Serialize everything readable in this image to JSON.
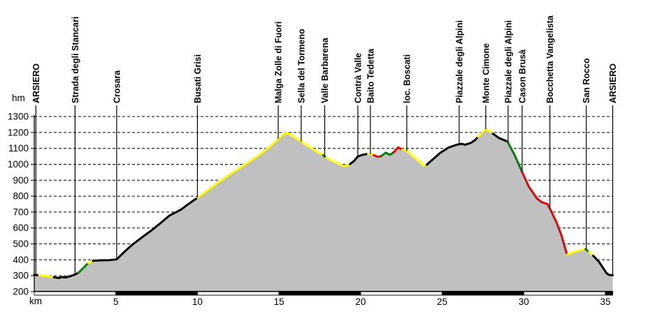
{
  "chart_data": {
    "type": "area",
    "xlabel": "km",
    "ylabel": "hm",
    "x_unit": "km",
    "y_unit": "hm",
    "xlim": [
      0,
      35.45
    ],
    "ylim": [
      200,
      1300
    ],
    "x_ticks": [
      5,
      10,
      15,
      20,
      25,
      30,
      35
    ],
    "y_ticks": [
      200,
      300,
      400,
      500,
      600,
      700,
      800,
      900,
      1000,
      1100,
      1200,
      1300
    ],
    "grid": "dashed-horizontal",
    "legend": "none",
    "background_color": "#ffffff",
    "area_fill_color": "#c0c0c0",
    "line_colors": {
      "black": "#000000",
      "yellow": "#ffff00",
      "green": "#008000",
      "red": "#ee0000"
    },
    "profile_segments": [
      {
        "color": "black",
        "points": [
          [
            0,
            305
          ],
          [
            0.3,
            303
          ]
        ]
      },
      {
        "color": "yellow",
        "points": [
          [
            0.3,
            303
          ],
          [
            0.8,
            297
          ],
          [
            1.2,
            291
          ]
        ]
      },
      {
        "color": "black",
        "points": [
          [
            1.2,
            291
          ],
          [
            1.5,
            286
          ],
          [
            1.7,
            292
          ],
          [
            1.9,
            289
          ],
          [
            2.2,
            297
          ],
          [
            2.45,
            306
          ],
          [
            2.7,
            318
          ]
        ]
      },
      {
        "color": "green",
        "points": [
          [
            2.7,
            318
          ],
          [
            3.0,
            348
          ],
          [
            3.3,
            380
          ]
        ]
      },
      {
        "color": "yellow",
        "points": [
          [
            3.3,
            380
          ],
          [
            3.6,
            394
          ]
        ]
      },
      {
        "color": "black",
        "points": [
          [
            3.6,
            394
          ],
          [
            4.1,
            397
          ],
          [
            4.6,
            398
          ],
          [
            5.05,
            403
          ],
          [
            5.5,
            448
          ],
          [
            6.0,
            494
          ],
          [
            6.6,
            541
          ],
          [
            7.2,
            586
          ],
          [
            7.8,
            636
          ],
          [
            8.3,
            679
          ],
          [
            8.65,
            697
          ],
          [
            9.0,
            716
          ],
          [
            9.4,
            747
          ],
          [
            10.0,
            790
          ]
        ]
      },
      {
        "color": "yellow",
        "points": [
          [
            10.0,
            790
          ],
          [
            10.6,
            836
          ],
          [
            11.2,
            881
          ],
          [
            12.0,
            939
          ],
          [
            12.8,
            991
          ],
          [
            13.4,
            1033
          ],
          [
            14.0,
            1076
          ],
          [
            14.5,
            1119
          ],
          [
            14.95,
            1159
          ],
          [
            15.3,
            1193
          ],
          [
            15.5,
            1196
          ],
          [
            15.8,
            1179
          ],
          [
            16.36,
            1141
          ],
          [
            16.9,
            1106
          ],
          [
            17.3,
            1079
          ],
          [
            17.7,
            1057
          ]
        ]
      },
      {
        "color": "green",
        "points": [
          [
            17.7,
            1057
          ],
          [
            17.9,
            1041
          ]
        ]
      },
      {
        "color": "yellow",
        "points": [
          [
            17.9,
            1041
          ],
          [
            18.3,
            1019
          ],
          [
            18.7,
            1000
          ],
          [
            19.0,
            988
          ],
          [
            19.2,
            994
          ],
          [
            19.35,
            1001
          ]
        ]
      },
      {
        "color": "black",
        "points": [
          [
            19.35,
            1001
          ],
          [
            19.6,
            1021
          ],
          [
            19.83,
            1049
          ],
          [
            20.1,
            1059
          ],
          [
            20.45,
            1066
          ]
        ]
      },
      {
        "color": "yellow",
        "points": [
          [
            20.45,
            1066
          ],
          [
            20.62,
            1063
          ],
          [
            20.8,
            1058
          ]
        ]
      },
      {
        "color": "red",
        "points": [
          [
            20.8,
            1058
          ],
          [
            21.05,
            1047
          ],
          [
            21.25,
            1051
          ]
        ]
      },
      {
        "color": "green",
        "points": [
          [
            21.25,
            1051
          ],
          [
            21.55,
            1073
          ],
          [
            21.8,
            1059
          ],
          [
            22.0,
            1073
          ]
        ]
      },
      {
        "color": "red",
        "points": [
          [
            22.0,
            1073
          ],
          [
            22.3,
            1106
          ],
          [
            22.55,
            1093
          ]
        ]
      },
      {
        "color": "yellow",
        "points": [
          [
            22.55,
            1093
          ],
          [
            22.83,
            1083
          ],
          [
            23.2,
            1051
          ],
          [
            23.6,
            1016
          ],
          [
            23.85,
            991
          ],
          [
            24.05,
            997
          ]
        ]
      },
      {
        "color": "black",
        "points": [
          [
            24.05,
            997
          ],
          [
            24.4,
            1029
          ],
          [
            24.9,
            1073
          ],
          [
            25.4,
            1106
          ],
          [
            25.9,
            1123
          ],
          [
            26.2,
            1129
          ],
          [
            26.4,
            1123
          ],
          [
            26.75,
            1134
          ],
          [
            27.0,
            1151
          ],
          [
            27.2,
            1173
          ]
        ]
      },
      {
        "color": "yellow",
        "points": [
          [
            27.2,
            1173
          ],
          [
            27.45,
            1201
          ],
          [
            27.67,
            1219
          ],
          [
            27.9,
            1208
          ],
          [
            28.1,
            1193
          ]
        ]
      },
      {
        "color": "black",
        "points": [
          [
            28.1,
            1193
          ],
          [
            28.5,
            1164
          ],
          [
            29.0,
            1143
          ]
        ]
      },
      {
        "color": "green",
        "points": [
          [
            29.0,
            1143
          ],
          [
            29.45,
            1056
          ],
          [
            29.9,
            951
          ]
        ]
      },
      {
        "color": "red",
        "points": [
          [
            29.9,
            951
          ],
          [
            30.3,
            861
          ],
          [
            30.8,
            786
          ],
          [
            31.1,
            762
          ],
          [
            31.45,
            751
          ],
          [
            31.6,
            722
          ],
          [
            32.0,
            636
          ],
          [
            32.3,
            556
          ],
          [
            32.65,
            431
          ]
        ]
      },
      {
        "color": "yellow",
        "points": [
          [
            32.65,
            431
          ],
          [
            33.0,
            448
          ],
          [
            33.5,
            461
          ],
          [
            33.78,
            467
          ]
        ]
      },
      {
        "color": "green",
        "points": [
          [
            33.78,
            467
          ],
          [
            34.0,
            449
          ]
        ]
      },
      {
        "color": "yellow",
        "points": [
          [
            34.0,
            449
          ],
          [
            34.25,
            426
          ]
        ]
      },
      {
        "color": "black",
        "points": [
          [
            34.25,
            426
          ],
          [
            34.6,
            389
          ],
          [
            34.85,
            351
          ],
          [
            35.05,
            319
          ],
          [
            35.2,
            306
          ],
          [
            35.45,
            303
          ]
        ]
      }
    ],
    "waypoints": [
      {
        "name": "ARSIERO",
        "km": 0.1,
        "hm": 305
      },
      {
        "name": "Strada degli Stancari",
        "km": 2.5,
        "hm": 308
      },
      {
        "name": "Crosara",
        "km": 5.05,
        "hm": 403
      },
      {
        "name": "Busati Grisi",
        "km": 10.0,
        "hm": 790
      },
      {
        "name": "Malga Zolle di Fuori",
        "km": 14.95,
        "hm": 1159
      },
      {
        "name": "Sella del Tormeno",
        "km": 16.36,
        "hm": 1141
      },
      {
        "name": "Valle Barbarena",
        "km": 17.8,
        "hm": 1049
      },
      {
        "name": "Contrà Valle",
        "km": 19.83,
        "hm": 1049
      },
      {
        "name": "Baito Tedetta",
        "km": 20.6,
        "hm": 1063
      },
      {
        "name": "loc. Boscati",
        "km": 22.83,
        "hm": 1083
      },
      {
        "name": "Piazzale degli Alpini",
        "km": 26.04,
        "hm": 1127
      },
      {
        "name": "Monte Cimone",
        "km": 27.67,
        "hm": 1219
      },
      {
        "name": "Piazzale degli Alpini",
        "km": 29.04,
        "hm": 1136
      },
      {
        "name": "Cason Brusà",
        "km": 29.9,
        "hm": 951
      },
      {
        "name": "Bocchetta Vangelista",
        "km": 31.6,
        "hm": 722
      },
      {
        "name": "San Rocco",
        "km": 33.83,
        "hm": 465
      },
      {
        "name": "ARSIERO",
        "km": 35.45,
        "hm": 303
      }
    ],
    "distance_scale_bar": [
      {
        "from_km": 0,
        "to_km": 5,
        "color": "white"
      },
      {
        "from_km": 5,
        "to_km": 10,
        "color": "black"
      },
      {
        "from_km": 10,
        "to_km": 15,
        "color": "white"
      },
      {
        "from_km": 15,
        "to_km": 20,
        "color": "black"
      },
      {
        "from_km": 20,
        "to_km": 25,
        "color": "white"
      },
      {
        "from_km": 25,
        "to_km": 30,
        "color": "black"
      },
      {
        "from_km": 30,
        "to_km": 35,
        "color": "white"
      },
      {
        "from_km": 35,
        "to_km": 35.45,
        "color": "black"
      }
    ]
  }
}
